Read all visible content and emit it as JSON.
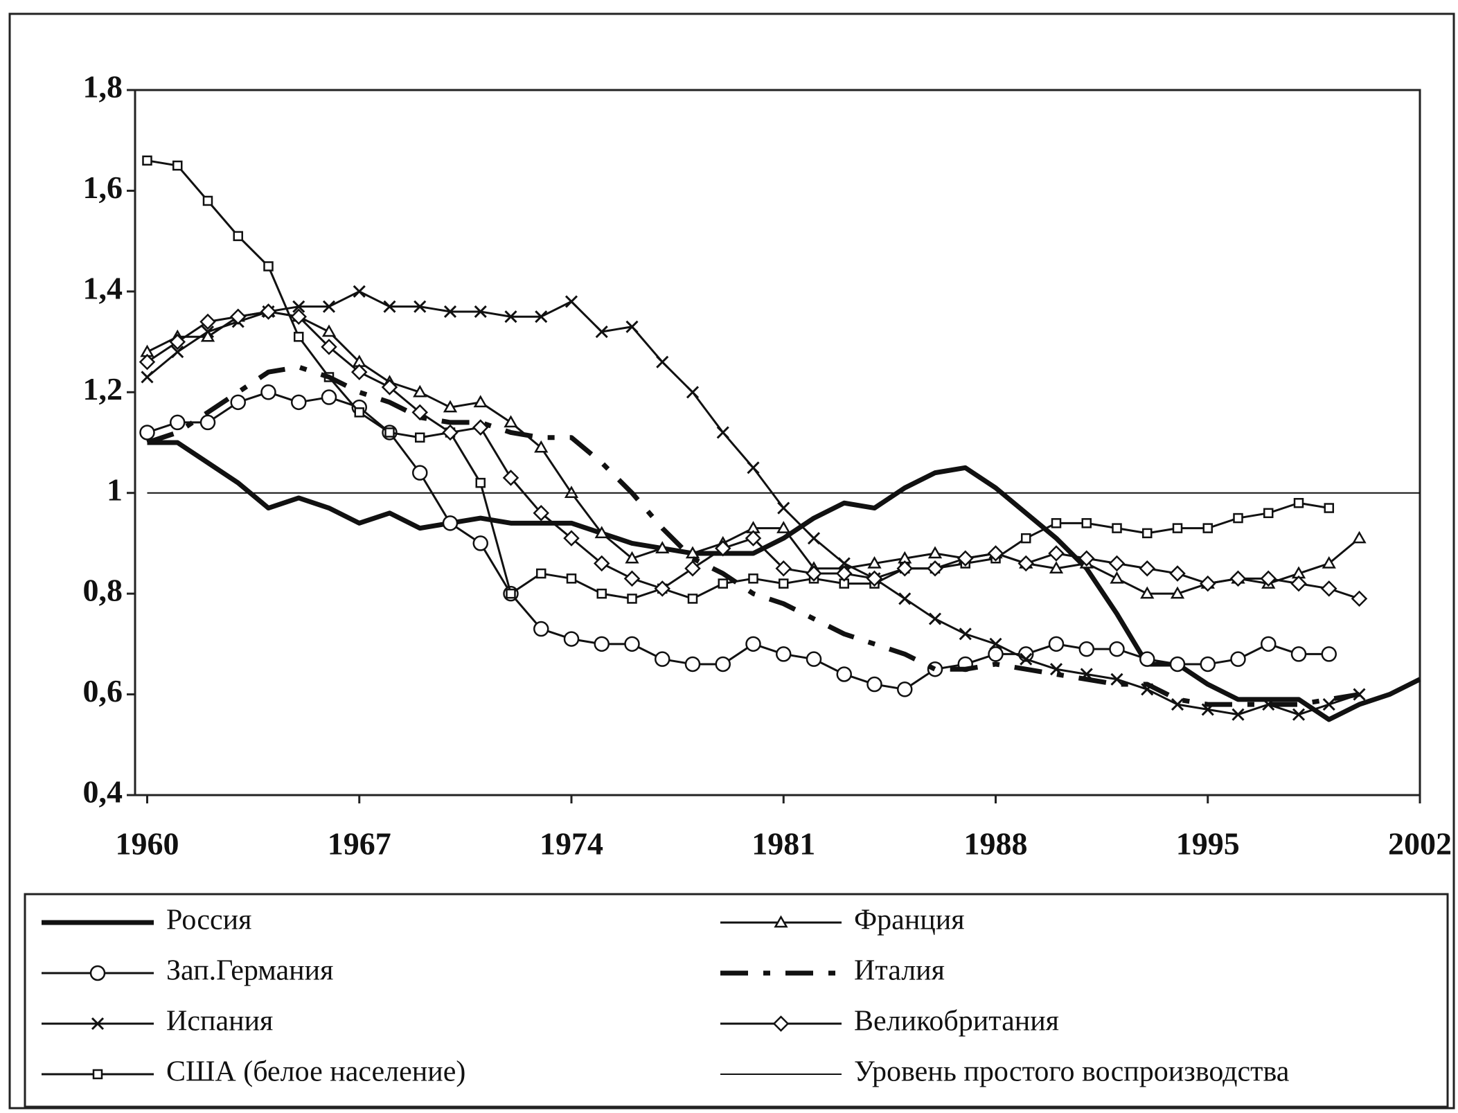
{
  "chart_data": {
    "type": "line",
    "x": [
      1960,
      1961,
      1962,
      1963,
      1964,
      1965,
      1966,
      1967,
      1968,
      1969,
      1970,
      1971,
      1972,
      1973,
      1974,
      1975,
      1976,
      1977,
      1978,
      1979,
      1980,
      1981,
      1982,
      1983,
      1984,
      1985,
      1986,
      1987,
      1988,
      1989,
      1990,
      1991,
      1992,
      1993,
      1994,
      1995,
      1996,
      1997,
      1998,
      1999,
      2000,
      2001,
      2002
    ],
    "xlim": [
      1959.6,
      2002
    ],
    "xticks": [
      1960,
      1967,
      1974,
      1981,
      1988,
      1995,
      2002
    ],
    "ylim": [
      0.4,
      1.8
    ],
    "yticks": [
      {
        "value": 0.4,
        "label": "0,4"
      },
      {
        "value": 0.6,
        "label": "0,6"
      },
      {
        "value": 0.8,
        "label": "0,8"
      },
      1,
      {
        "value": 1.2,
        "label": "1,2"
      },
      {
        "value": 1.4,
        "label": "1,4"
      },
      {
        "value": 1.6,
        "label": "1,6"
      },
      {
        "value": 1.8,
        "label": "1,8"
      }
    ],
    "series": [
      {
        "name": "Россия",
        "color": "#111111",
        "marker": "none",
        "dash": "solid",
        "width": 7,
        "values": [
          1.1,
          1.1,
          1.06,
          1.02,
          0.97,
          0.99,
          0.97,
          0.94,
          0.96,
          0.93,
          0.94,
          0.95,
          0.94,
          0.94,
          0.94,
          0.92,
          0.9,
          0.89,
          0.88,
          0.88,
          0.88,
          0.91,
          0.95,
          0.98,
          0.97,
          1.01,
          1.04,
          1.05,
          1.01,
          0.96,
          0.91,
          0.85,
          0.76,
          0.66,
          0.66,
          0.62,
          0.59,
          0.59,
          0.59,
          0.55,
          0.58,
          0.6,
          0.63
        ]
      },
      {
        "name": "Зап.Германия",
        "color": "#111111",
        "marker": "circle",
        "dash": "solid",
        "width": 3,
        "values": [
          1.12,
          1.14,
          1.14,
          1.18,
          1.2,
          1.18,
          1.19,
          1.17,
          1.12,
          1.04,
          0.94,
          0.9,
          0.8,
          0.73,
          0.71,
          0.7,
          0.7,
          0.67,
          0.66,
          0.66,
          0.7,
          0.68,
          0.67,
          0.64,
          0.62,
          0.61,
          0.65,
          0.66,
          0.68,
          0.68,
          0.7,
          0.69,
          0.69,
          0.67,
          0.66,
          0.66,
          0.67,
          0.7,
          0.68,
          0.68,
          null,
          null,
          null
        ]
      },
      {
        "name": "Испания",
        "color": "#111111",
        "marker": "x",
        "dash": "solid",
        "width": 3,
        "values": [
          1.23,
          1.28,
          1.32,
          1.34,
          1.36,
          1.37,
          1.37,
          1.4,
          1.37,
          1.37,
          1.36,
          1.36,
          1.35,
          1.35,
          1.38,
          1.32,
          1.33,
          1.26,
          1.2,
          1.12,
          1.05,
          0.97,
          0.91,
          0.86,
          0.83,
          0.79,
          0.75,
          0.72,
          0.7,
          0.67,
          0.65,
          0.64,
          0.63,
          0.61,
          0.58,
          0.57,
          0.56,
          0.58,
          0.56,
          0.58,
          0.6,
          null,
          null
        ]
      },
      {
        "name": "США (белое население)",
        "color": "#111111",
        "marker": "square",
        "dash": "solid",
        "width": 3,
        "values": [
          1.66,
          1.65,
          1.58,
          1.51,
          1.45,
          1.31,
          1.23,
          1.16,
          1.12,
          1.11,
          1.12,
          1.02,
          0.8,
          0.84,
          0.83,
          0.8,
          0.79,
          0.81,
          0.79,
          0.82,
          0.83,
          0.82,
          0.83,
          0.82,
          0.82,
          0.85,
          0.85,
          0.86,
          0.87,
          0.91,
          0.94,
          0.94,
          0.93,
          0.92,
          0.93,
          0.93,
          0.95,
          0.96,
          0.98,
          0.97,
          null,
          null,
          null
        ]
      },
      {
        "name": "Франция",
        "color": "#111111",
        "marker": "triangle",
        "dash": "solid",
        "width": 3,
        "values": [
          1.28,
          1.31,
          1.31,
          1.35,
          1.36,
          1.35,
          1.32,
          1.26,
          1.22,
          1.2,
          1.17,
          1.18,
          1.14,
          1.09,
          1.0,
          0.92,
          0.87,
          0.89,
          0.88,
          0.9,
          0.93,
          0.93,
          0.85,
          0.85,
          0.86,
          0.87,
          0.88,
          0.87,
          0.88,
          0.86,
          0.85,
          0.86,
          0.83,
          0.8,
          0.8,
          0.82,
          0.83,
          0.82,
          0.84,
          0.86,
          0.91,
          null,
          null
        ]
      },
      {
        "name": "Италия",
        "color": "#111111",
        "marker": "none",
        "dash": "dashdot",
        "width": 7,
        "values": [
          1.1,
          1.12,
          1.16,
          1.2,
          1.24,
          1.25,
          1.23,
          1.2,
          1.18,
          1.15,
          1.14,
          1.14,
          1.12,
          1.11,
          1.11,
          1.06,
          1.0,
          0.93,
          0.87,
          0.84,
          0.8,
          0.78,
          0.75,
          0.72,
          0.7,
          0.68,
          0.65,
          0.65,
          0.66,
          0.65,
          0.64,
          0.63,
          0.62,
          0.62,
          0.59,
          0.58,
          0.58,
          0.58,
          0.58,
          0.59,
          0.6,
          null,
          null
        ]
      },
      {
        "name": "Великобритания",
        "color": "#111111",
        "marker": "diamond",
        "dash": "solid",
        "width": 3,
        "values": [
          1.26,
          1.3,
          1.34,
          1.35,
          1.36,
          1.35,
          1.29,
          1.24,
          1.21,
          1.16,
          1.12,
          1.13,
          1.03,
          0.96,
          0.91,
          0.86,
          0.83,
          0.81,
          0.85,
          0.89,
          0.91,
          0.85,
          0.84,
          0.84,
          0.83,
          0.85,
          0.85,
          0.87,
          0.88,
          0.86,
          0.88,
          0.87,
          0.86,
          0.85,
          0.84,
          0.82,
          0.83,
          0.83,
          0.82,
          0.81,
          0.79,
          null,
          null
        ]
      },
      {
        "name": "Уровень простого воспроизводства",
        "color": "#111111",
        "marker": "none",
        "dash": "solid",
        "width": 2,
        "values": [
          1,
          1,
          1,
          1,
          1,
          1,
          1,
          1,
          1,
          1,
          1,
          1,
          1,
          1,
          1,
          1,
          1,
          1,
          1,
          1,
          1,
          1,
          1,
          1,
          1,
          1,
          1,
          1,
          1,
          1,
          1,
          1,
          1,
          1,
          1,
          1,
          1,
          1,
          1,
          1,
          1,
          1,
          1
        ]
      }
    ]
  }
}
